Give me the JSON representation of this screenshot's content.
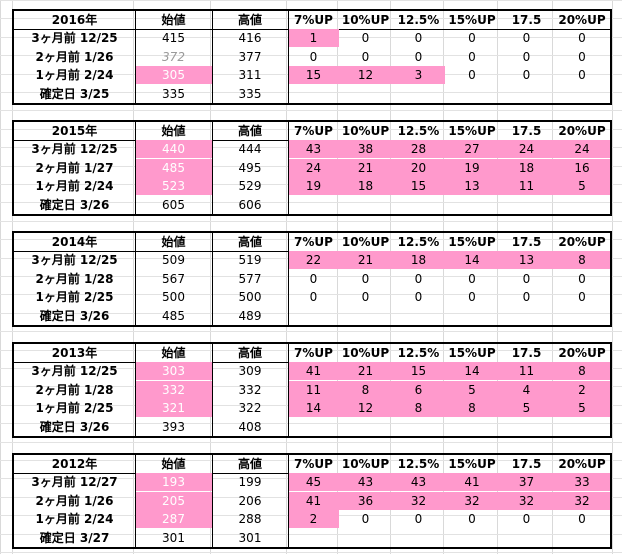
{
  "columns": [
    "始値",
    "高値",
    "7%UP",
    "10%UP",
    "12.5%",
    "15%UP",
    "17.5",
    "20%UP"
  ],
  "colors": {
    "highlight": "#ff99cc",
    "border": "#000000",
    "grid": "#d9d9d9"
  },
  "blocks": [
    {
      "year": "2016年",
      "rows": [
        {
          "label": "3ヶ月前 12/25",
          "cells": [
            "415",
            "416",
            "1",
            "0",
            "0",
            "0",
            "0",
            "0"
          ],
          "pink": [
            false,
            false,
            true,
            false,
            false,
            false,
            false,
            false
          ]
        },
        {
          "label": "2ヶ月前 1/26",
          "cells": [
            "372",
            "377",
            "0",
            "0",
            "0",
            "0",
            "0",
            "0"
          ],
          "pink": [
            false,
            false,
            false,
            false,
            false,
            false,
            false,
            false
          ],
          "grey": [
            true,
            false,
            false,
            false,
            false,
            false,
            false,
            false
          ]
        },
        {
          "label": "1ヶ月前 2/24",
          "cells": [
            "305",
            "311",
            "15",
            "12",
            "3",
            "0",
            "0",
            "0"
          ],
          "pink": [
            true,
            false,
            true,
            true,
            true,
            false,
            false,
            false
          ]
        },
        {
          "label": "確定日 3/25",
          "cells": [
            "335",
            "335",
            "",
            "",
            "",
            "",
            "",
            ""
          ],
          "pink": [
            false,
            false,
            false,
            false,
            false,
            false,
            false,
            false
          ]
        }
      ]
    },
    {
      "year": "2015年",
      "rows": [
        {
          "label": "3ヶ月前 12/25",
          "cells": [
            "440",
            "444",
            "43",
            "38",
            "28",
            "27",
            "24",
            "24"
          ],
          "pink": [
            true,
            false,
            true,
            true,
            true,
            true,
            true,
            true
          ]
        },
        {
          "label": "2ヶ月前 1/27",
          "cells": [
            "485",
            "495",
            "24",
            "21",
            "20",
            "19",
            "18",
            "16"
          ],
          "pink": [
            true,
            false,
            true,
            true,
            true,
            true,
            true,
            true
          ]
        },
        {
          "label": "1ヶ月前 2/24",
          "cells": [
            "523",
            "529",
            "19",
            "18",
            "15",
            "13",
            "11",
            "5"
          ],
          "pink": [
            true,
            false,
            true,
            true,
            true,
            true,
            true,
            true
          ]
        },
        {
          "label": "確定日 3/26",
          "cells": [
            "605",
            "606",
            "",
            "",
            "",
            "",
            "",
            ""
          ],
          "pink": [
            false,
            false,
            false,
            false,
            false,
            false,
            false,
            false
          ]
        }
      ]
    },
    {
      "year": "2014年",
      "rows": [
        {
          "label": "3ヶ月前 12/25",
          "cells": [
            "509",
            "519",
            "22",
            "21",
            "18",
            "14",
            "13",
            "8"
          ],
          "pink": [
            false,
            false,
            true,
            true,
            true,
            true,
            true,
            true
          ]
        },
        {
          "label": "2ヶ月前 1/28",
          "cells": [
            "567",
            "577",
            "0",
            "0",
            "0",
            "0",
            "0",
            "0"
          ],
          "pink": [
            false,
            false,
            false,
            false,
            false,
            false,
            false,
            false
          ]
        },
        {
          "label": "1ヶ月前 2/25",
          "cells": [
            "500",
            "500",
            "0",
            "0",
            "0",
            "0",
            "0",
            "0"
          ],
          "pink": [
            false,
            false,
            false,
            false,
            false,
            false,
            false,
            false
          ]
        },
        {
          "label": "確定日 3/26",
          "cells": [
            "485",
            "489",
            "",
            "",
            "",
            "",
            "",
            ""
          ],
          "pink": [
            false,
            false,
            false,
            false,
            false,
            false,
            false,
            false
          ]
        }
      ]
    },
    {
      "year": "2013年",
      "rows": [
        {
          "label": "3ヶ月前 12/25",
          "cells": [
            "303",
            "309",
            "41",
            "21",
            "15",
            "14",
            "11",
            "8"
          ],
          "pink": [
            true,
            false,
            true,
            true,
            true,
            true,
            true,
            true
          ]
        },
        {
          "label": "2ヶ月前 1/28",
          "cells": [
            "332",
            "332",
            "11",
            "8",
            "6",
            "5",
            "4",
            "2"
          ],
          "pink": [
            true,
            false,
            true,
            true,
            true,
            true,
            true,
            true
          ]
        },
        {
          "label": "1ヶ月前 2/25",
          "cells": [
            "321",
            "322",
            "14",
            "12",
            "8",
            "8",
            "5",
            "5"
          ],
          "pink": [
            true,
            false,
            true,
            true,
            true,
            true,
            true,
            true
          ]
        },
        {
          "label": "確定日 3/26",
          "cells": [
            "393",
            "408",
            "",
            "",
            "",
            "",
            "",
            ""
          ],
          "pink": [
            false,
            false,
            false,
            false,
            false,
            false,
            false,
            false
          ]
        }
      ]
    },
    {
      "year": "2012年",
      "rows": [
        {
          "label": "3ヶ月前 12/27",
          "cells": [
            "193",
            "199",
            "45",
            "43",
            "43",
            "41",
            "37",
            "33"
          ],
          "pink": [
            true,
            false,
            true,
            true,
            true,
            true,
            true,
            true
          ]
        },
        {
          "label": "2ヶ月前 1/26",
          "cells": [
            "205",
            "206",
            "41",
            "36",
            "32",
            "32",
            "32",
            "32"
          ],
          "pink": [
            true,
            false,
            true,
            true,
            true,
            true,
            true,
            true
          ]
        },
        {
          "label": "1ヶ月前 2/24",
          "cells": [
            "287",
            "288",
            "2",
            "0",
            "0",
            "0",
            "0",
            "0"
          ],
          "pink": [
            true,
            false,
            true,
            false,
            false,
            false,
            false,
            false
          ]
        },
        {
          "label": "確定日 3/27",
          "cells": [
            "301",
            "301",
            "",
            "",
            "",
            "",
            "",
            ""
          ],
          "pink": [
            false,
            false,
            false,
            false,
            false,
            false,
            false,
            false
          ]
        }
      ]
    }
  ]
}
